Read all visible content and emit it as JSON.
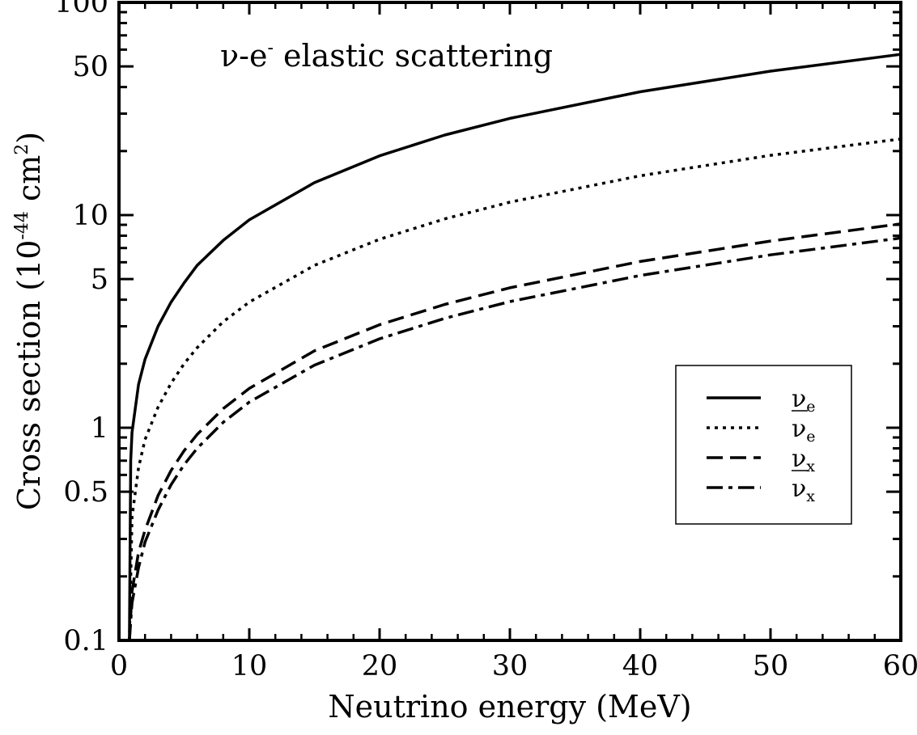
{
  "chart_data": {
    "type": "line",
    "title": "",
    "annotation": {
      "main": "ν-e",
      "sup": "-",
      "rest": " elastic scattering"
    },
    "xlabel": "Neutrino energy (MeV)",
    "ylabel": {
      "main": "Cross section (10",
      "sup": "-44",
      "mid": " cm",
      "sup2": "2",
      "end": ")"
    },
    "x_scale": "linear",
    "y_scale": "log",
    "xlim": [
      0,
      60
    ],
    "ylim": [
      0.1,
      100
    ],
    "x_ticks": [
      0,
      10,
      20,
      30,
      40,
      50,
      60
    ],
    "x_tick_labels": [
      "0",
      "10",
      "20",
      "30",
      "40",
      "50",
      "60"
    ],
    "y_ticks": [
      0.1,
      0.5,
      1,
      5,
      10,
      50,
      100
    ],
    "y_tick_labels": [
      "0.1",
      "0.5",
      "1",
      "5",
      "10",
      "50",
      "100"
    ],
    "grid": false,
    "legend_position": "bottom-right",
    "series": [
      {
        "name": "ν_e",
        "symbol": "ν",
        "sub": "e",
        "bar": false,
        "style": "solid",
        "x": [
          0.8,
          0.9,
          1,
          1.5,
          2,
          3,
          4,
          5,
          6,
          8,
          10,
          15,
          20,
          25,
          30,
          40,
          50,
          60
        ],
        "y": [
          0.1,
          0.7,
          0.95,
          1.6,
          2.1,
          3.0,
          3.9,
          4.8,
          5.8,
          7.6,
          9.5,
          14.2,
          19.0,
          23.8,
          28.5,
          38.0,
          47.5,
          57.0
        ]
      },
      {
        "name": "ν̄_e",
        "symbol": "ν",
        "sub": "e",
        "bar": true,
        "style": "dotted",
        "x": [
          0.8,
          1,
          1.5,
          2,
          3,
          4,
          5,
          6,
          8,
          10,
          15,
          20,
          25,
          30,
          40,
          50,
          60
        ],
        "y": [
          0.1,
          0.38,
          0.65,
          0.88,
          1.25,
          1.62,
          2.0,
          2.38,
          3.15,
          3.9,
          5.8,
          7.7,
          9.6,
          11.5,
          15.3,
          19.1,
          22.8
        ]
      },
      {
        "name": "ν_x",
        "symbol": "ν",
        "sub": "x",
        "bar": false,
        "style": "dashed",
        "x": [
          0.8,
          1,
          1.5,
          2,
          3,
          4,
          5,
          6,
          8,
          10,
          15,
          20,
          25,
          30,
          40,
          50,
          60
        ],
        "y": [
          0.1,
          0.17,
          0.26,
          0.33,
          0.48,
          0.63,
          0.78,
          0.93,
          1.23,
          1.53,
          2.3,
          3.05,
          3.8,
          4.55,
          6.05,
          7.55,
          9.1
        ]
      },
      {
        "name": "ν̄_x",
        "symbol": "ν",
        "sub": "x",
        "bar": true,
        "style": "dashdot",
        "x": [
          0.8,
          1,
          1.5,
          2,
          3,
          4,
          5,
          6,
          8,
          10,
          15,
          20,
          25,
          30,
          40,
          50,
          60
        ],
        "y": [
          0.1,
          0.15,
          0.22,
          0.29,
          0.41,
          0.54,
          0.67,
          0.8,
          1.06,
          1.32,
          1.97,
          2.62,
          3.27,
          3.92,
          5.2,
          6.5,
          7.8
        ]
      }
    ]
  },
  "colors": {
    "line": "#000000",
    "background": "#ffffff"
  }
}
